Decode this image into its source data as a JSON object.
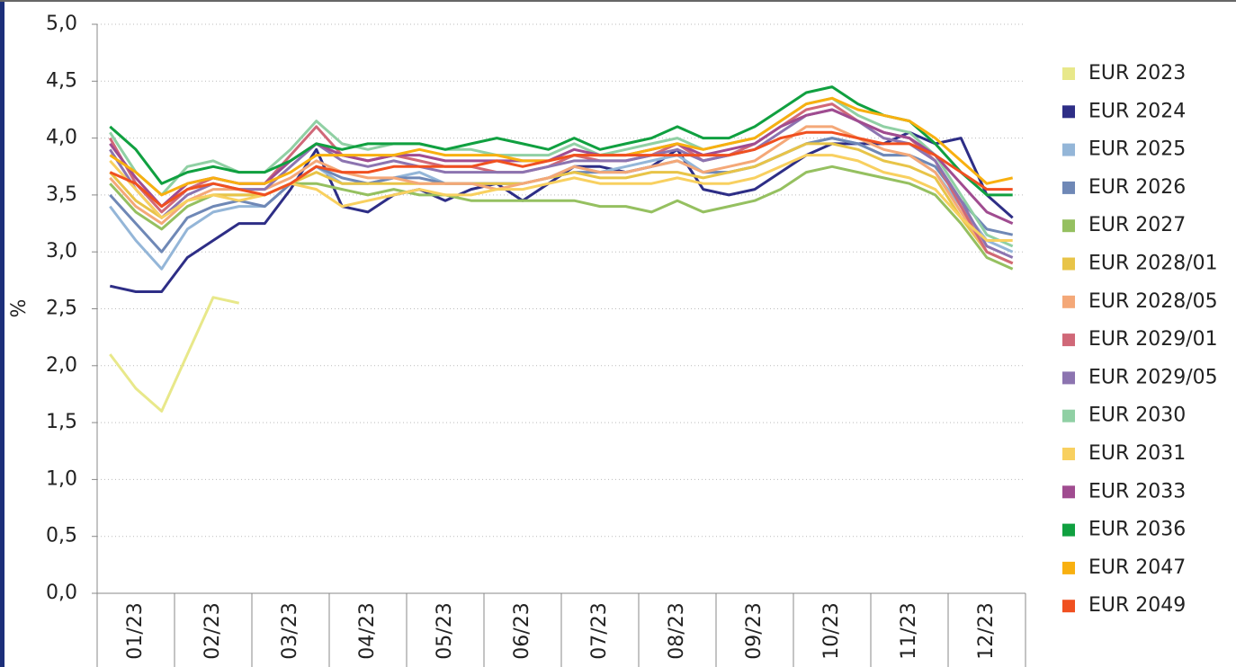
{
  "chart_data": {
    "type": "line",
    "y_label": "%",
    "categories": [
      null,
      "01/23",
      null,
      null,
      "02/23",
      null,
      null,
      "03/23",
      null,
      null,
      "04/23",
      null,
      null,
      "05/23",
      null,
      null,
      "06/23",
      null,
      null,
      "07/23",
      null,
      null,
      "08/23",
      null,
      null,
      "09/23",
      null,
      null,
      "10/23",
      null,
      null,
      "11/23",
      null,
      null,
      "12/23",
      null
    ],
    "ylim": [
      0,
      5
    ],
    "yticks": [
      {
        "value": 0,
        "label": "0,0"
      },
      {
        "value": 0.5,
        "label": "0,5"
      },
      {
        "value": 1,
        "label": "1,0"
      },
      {
        "value": 1.5,
        "label": "1,5"
      },
      {
        "value": 2,
        "label": "2,0"
      },
      {
        "value": 2.5,
        "label": "2,5"
      },
      {
        "value": 3,
        "label": "3,0"
      },
      {
        "value": 3.5,
        "label": "3,5"
      },
      {
        "value": 4,
        "label": "4,0"
      },
      {
        "value": 4.5,
        "label": "4,5"
      },
      {
        "value": 5,
        "label": "5,0"
      }
    ],
    "grid": true,
    "legend": "right",
    "series": [
      {
        "name": "EUR 2023",
        "color": "#e8e88a",
        "values": [
          2.1,
          1.8,
          1.6,
          2.1,
          2.6,
          2.55,
          null,
          null,
          null,
          null,
          null,
          null,
          null,
          null,
          null,
          null,
          null,
          null,
          null,
          null,
          null,
          null,
          null,
          null,
          null,
          null,
          null,
          null,
          null,
          null,
          null,
          null,
          null,
          null,
          null,
          null
        ]
      },
      {
        "name": "EUR 2024",
        "color": "#2e2e86",
        "values": [
          2.7,
          2.65,
          2.65,
          2.95,
          3.1,
          3.25,
          3.25,
          3.55,
          3.9,
          3.4,
          3.35,
          3.5,
          3.55,
          3.45,
          3.55,
          3.6,
          3.45,
          3.6,
          3.75,
          3.75,
          3.7,
          3.75,
          3.9,
          3.55,
          3.5,
          3.55,
          3.7,
          3.85,
          3.95,
          3.95,
          3.95,
          4.05,
          3.95,
          4.0,
          3.5,
          3.3
        ]
      },
      {
        "name": "EUR 2025",
        "color": "#94b6d8",
        "values": [
          3.4,
          3.1,
          2.85,
          3.2,
          3.35,
          3.4,
          3.4,
          3.6,
          3.75,
          3.6,
          3.6,
          3.65,
          3.7,
          3.6,
          3.6,
          3.6,
          3.6,
          3.65,
          3.75,
          3.7,
          3.75,
          3.8,
          3.85,
          3.7,
          3.7,
          3.75,
          3.85,
          3.95,
          4.0,
          3.95,
          3.85,
          3.85,
          3.7,
          3.4,
          3.1,
          3.0
        ]
      },
      {
        "name": "EUR 2026",
        "color": "#6f88b6",
        "values": [
          3.5,
          3.25,
          3.0,
          3.3,
          3.4,
          3.45,
          3.4,
          3.6,
          3.75,
          3.65,
          3.6,
          3.65,
          3.65,
          3.6,
          3.6,
          3.6,
          3.6,
          3.65,
          3.7,
          3.7,
          3.7,
          3.75,
          3.8,
          3.7,
          3.7,
          3.75,
          3.85,
          3.95,
          4.0,
          3.95,
          3.85,
          3.85,
          3.75,
          3.45,
          3.2,
          3.15
        ]
      },
      {
        "name": "EUR 2027",
        "color": "#95c060",
        "values": [
          3.6,
          3.35,
          3.2,
          3.4,
          3.5,
          3.5,
          3.5,
          3.6,
          3.6,
          3.55,
          3.5,
          3.55,
          3.5,
          3.5,
          3.45,
          3.45,
          3.45,
          3.45,
          3.45,
          3.4,
          3.4,
          3.35,
          3.45,
          3.35,
          3.4,
          3.45,
          3.55,
          3.7,
          3.75,
          3.7,
          3.65,
          3.6,
          3.5,
          3.25,
          2.95,
          2.85
        ]
      },
      {
        "name": "EUR 2028/01",
        "color": "#e8c448",
        "values": [
          3.7,
          3.45,
          3.3,
          3.45,
          3.5,
          3.5,
          3.5,
          3.6,
          3.7,
          3.6,
          3.6,
          3.6,
          3.6,
          3.6,
          3.6,
          3.6,
          3.6,
          3.65,
          3.7,
          3.65,
          3.65,
          3.7,
          3.7,
          3.65,
          3.7,
          3.75,
          3.85,
          3.95,
          3.95,
          3.9,
          3.8,
          3.75,
          3.65,
          3.3,
          3.0,
          2.9
        ]
      },
      {
        "name": "EUR 2028/05",
        "color": "#f4a878",
        "values": [
          3.65,
          3.4,
          3.25,
          3.45,
          3.55,
          3.55,
          3.55,
          3.65,
          3.8,
          3.7,
          3.65,
          3.65,
          3.6,
          3.6,
          3.6,
          3.55,
          3.6,
          3.65,
          3.75,
          3.7,
          3.7,
          3.75,
          3.8,
          3.7,
          3.75,
          3.8,
          3.95,
          4.1,
          4.1,
          4.0,
          3.9,
          3.85,
          3.7,
          3.35,
          3.0,
          2.9
        ]
      },
      {
        "name": "EUR 2029/01",
        "color": "#d06878",
        "values": [
          4.0,
          3.6,
          3.35,
          3.55,
          3.65,
          3.6,
          3.6,
          3.85,
          4.1,
          3.85,
          3.8,
          3.85,
          3.8,
          3.75,
          3.75,
          3.7,
          3.7,
          3.75,
          3.85,
          3.8,
          3.8,
          3.85,
          3.95,
          3.8,
          3.85,
          3.95,
          4.1,
          4.25,
          4.3,
          4.15,
          4.05,
          4.0,
          3.8,
          3.4,
          3.0,
          2.9
        ]
      },
      {
        "name": "EUR 2029/05",
        "color": "#8c74b0",
        "values": [
          3.9,
          3.55,
          3.3,
          3.5,
          3.6,
          3.55,
          3.55,
          3.75,
          3.95,
          3.8,
          3.75,
          3.8,
          3.75,
          3.7,
          3.7,
          3.7,
          3.7,
          3.75,
          3.8,
          3.8,
          3.8,
          3.85,
          3.9,
          3.8,
          3.85,
          3.9,
          4.05,
          4.2,
          4.25,
          4.15,
          4.0,
          3.95,
          3.8,
          3.45,
          3.05,
          2.95
        ]
      },
      {
        "name": "EUR 2030",
        "color": "#90d0a4",
        "values": [
          4.05,
          3.7,
          3.5,
          3.75,
          3.8,
          3.7,
          3.7,
          3.9,
          4.15,
          3.95,
          3.9,
          3.95,
          3.95,
          3.9,
          3.9,
          3.85,
          3.85,
          3.85,
          3.95,
          3.85,
          3.9,
          3.95,
          4.0,
          3.9,
          3.95,
          4.0,
          4.15,
          4.3,
          4.35,
          4.2,
          4.1,
          4.05,
          3.85,
          3.5,
          3.15,
          3.05
        ]
      },
      {
        "name": "EUR 2031",
        "color": "#f8d060",
        "values": [
          3.8,
          3.55,
          3.3,
          3.45,
          3.5,
          3.45,
          3.5,
          3.6,
          3.55,
          3.4,
          3.45,
          3.5,
          3.55,
          3.5,
          3.5,
          3.55,
          3.55,
          3.6,
          3.65,
          3.6,
          3.6,
          3.6,
          3.65,
          3.6,
          3.6,
          3.65,
          3.75,
          3.85,
          3.85,
          3.8,
          3.7,
          3.65,
          3.55,
          3.3,
          3.1,
          3.1
        ]
      },
      {
        "name": "EUR 2033",
        "color": "#a04c90",
        "values": [
          3.95,
          3.65,
          3.4,
          3.6,
          3.65,
          3.6,
          3.6,
          3.8,
          3.95,
          3.85,
          3.8,
          3.85,
          3.85,
          3.8,
          3.8,
          3.8,
          3.8,
          3.8,
          3.9,
          3.85,
          3.85,
          3.9,
          3.95,
          3.85,
          3.9,
          3.95,
          4.1,
          4.2,
          4.25,
          4.15,
          4.05,
          4.0,
          3.85,
          3.6,
          3.35,
          3.25
        ]
      },
      {
        "name": "EUR 2036",
        "color": "#10a040",
        "values": [
          4.1,
          3.9,
          3.6,
          3.7,
          3.75,
          3.7,
          3.7,
          3.8,
          3.95,
          3.9,
          3.95,
          3.95,
          3.95,
          3.9,
          3.95,
          4.0,
          3.95,
          3.9,
          4.0,
          3.9,
          3.95,
          4.0,
          4.1,
          4.0,
          4.0,
          4.1,
          4.25,
          4.4,
          4.45,
          4.3,
          4.2,
          4.15,
          3.95,
          3.7,
          3.5,
          3.5
        ]
      },
      {
        "name": "EUR 2047",
        "color": "#f8b010",
        "values": [
          3.85,
          3.7,
          3.5,
          3.6,
          3.65,
          3.6,
          3.6,
          3.7,
          3.85,
          3.85,
          3.85,
          3.85,
          3.9,
          3.85,
          3.85,
          3.85,
          3.8,
          3.8,
          3.85,
          3.85,
          3.85,
          3.9,
          3.95,
          3.9,
          3.95,
          4.0,
          4.15,
          4.3,
          4.35,
          4.25,
          4.2,
          4.15,
          4.0,
          3.8,
          3.6,
          3.65
        ]
      },
      {
        "name": "EUR 2049",
        "color": "#f05020",
        "values": [
          3.7,
          3.6,
          3.4,
          3.55,
          3.6,
          3.55,
          3.5,
          3.6,
          3.75,
          3.7,
          3.7,
          3.75,
          3.75,
          3.75,
          3.75,
          3.8,
          3.75,
          3.8,
          3.85,
          3.85,
          3.85,
          3.85,
          3.85,
          3.85,
          3.85,
          3.9,
          4.0,
          4.05,
          4.05,
          4.0,
          3.95,
          3.95,
          3.85,
          3.7,
          3.55,
          3.55
        ]
      }
    ]
  }
}
